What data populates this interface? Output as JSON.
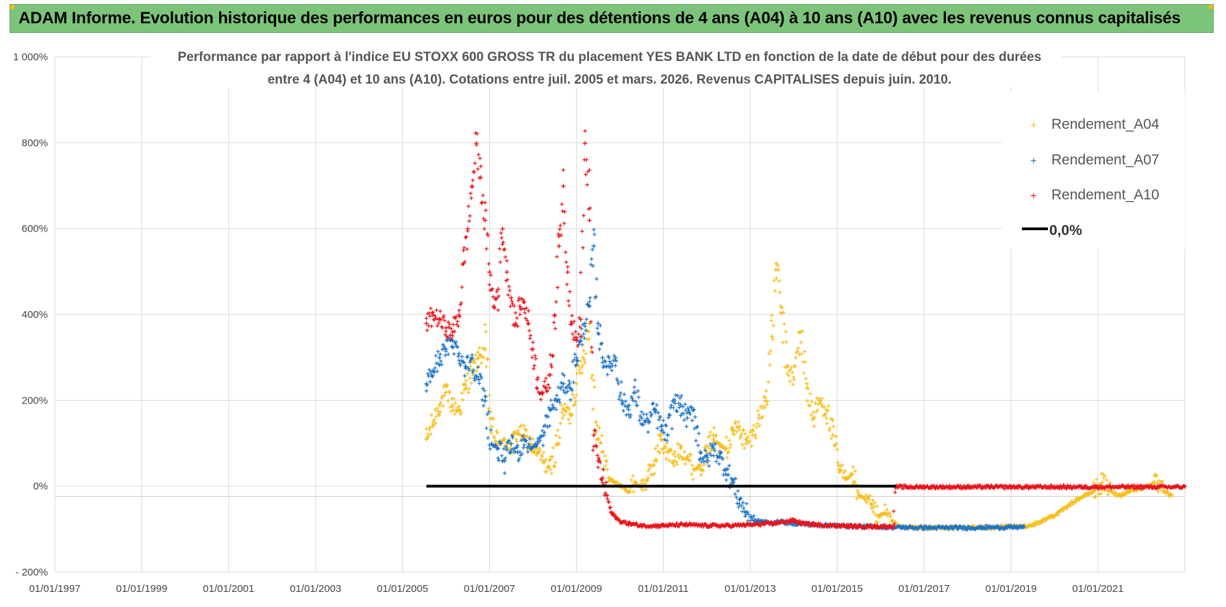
{
  "banner": {
    "title": "ADAM Informe. Evolution historique des performances en euros pour des détentions de 4 ans (A04) à 10 ans (A10) avec les revenus connus capitalisés"
  },
  "colors": {
    "A04": "#f5bf1e",
    "A07": "#1f74c4",
    "A10": "#e8141b",
    "zero": "#000000",
    "banner_bg": "#7dc47b",
    "grid": "#d9d9d9"
  },
  "chart_data": {
    "type": "scatter",
    "title_line1": "Performance par rapport à l'indice EU STOXX 600 GROSS TR  du placement YES BANK LTD en fonction de la date de début pour des durées",
    "title_line2": "entre 4 (A04) et 10 ans (A10).  Cotations entre juil. 2005 et mars. 2026. Revenus CAPITALISES depuis juin. 2010.",
    "xlabel": "",
    "ylabel": "",
    "x_range": [
      1997.0,
      2023.0
    ],
    "ylim": [
      -200,
      1000
    ],
    "y_ticks": [
      -200,
      0,
      200,
      400,
      600,
      800,
      1000
    ],
    "y_tick_labels": [
      "- 200%",
      "0%",
      "200%",
      "400%",
      "600%",
      "800%",
      "1 000%"
    ],
    "x_ticks": [
      1997,
      1999,
      2001,
      2003,
      2005,
      2007,
      2009,
      2011,
      2013,
      2015,
      2017,
      2019,
      2021
    ],
    "x_tick_labels": [
      "01/01/1997",
      "01/01/1999",
      "01/01/2001",
      "01/01/2003",
      "01/01/2005",
      "01/01/2007",
      "01/01/2009",
      "01/01/2011",
      "01/01/2013",
      "01/01/2015",
      "01/01/2017",
      "01/01/2019",
      "01/01/2021"
    ],
    "grid": true,
    "legend_position": "top-right",
    "series": [
      {
        "name": "Rendement_A04",
        "key": "A04",
        "marker": "+",
        "x": [
          2005.55,
          2005.7,
          2005.85,
          2006.0,
          2006.15,
          2006.3,
          2006.45,
          2006.6,
          2006.75,
          2006.9,
          2007.05,
          2007.2,
          2007.35,
          2007.5,
          2007.65,
          2007.8,
          2007.95,
          2008.1,
          2008.25,
          2008.4,
          2008.55,
          2008.7,
          2008.85,
          2009.0,
          2009.15,
          2009.3,
          2009.45,
          2009.6,
          2009.75,
          2009.9,
          2010.05,
          2010.2,
          2010.35,
          2010.5,
          2010.65,
          2010.8,
          2010.95,
          2011.1,
          2011.25,
          2011.4,
          2011.55,
          2011.7,
          2011.85,
          2012.0,
          2012.15,
          2012.3,
          2012.45,
          2012.6,
          2012.75,
          2012.9,
          2013.05,
          2013.2,
          2013.35,
          2013.5,
          2013.6,
          2013.7,
          2013.85,
          2014.0,
          2014.15,
          2014.3,
          2014.45,
          2014.6,
          2014.75,
          2014.9,
          2015.05,
          2015.2,
          2015.35,
          2015.5,
          2015.65,
          2015.8,
          2015.95,
          2016.1,
          2016.25,
          2016.4,
          2016.55,
          2016.7,
          2016.85,
          2017.0,
          2017.5,
          2018.0,
          2018.5,
          2019.0,
          2019.3,
          2019.5,
          2019.7,
          2019.9,
          2020.1,
          2020.3,
          2020.5,
          2020.7,
          2020.9,
          2021.1,
          2021.3,
          2021.5,
          2021.7,
          2021.9,
          2022.1,
          2022.3,
          2022.5,
          2022.7
        ],
        "values": [
          110,
          150,
          190,
          220,
          190,
          180,
          230,
          270,
          300,
          320,
          140,
          100,
          110,
          90,
          130,
          120,
          100,
          80,
          60,
          40,
          100,
          180,
          170,
          240,
          300,
          380,
          150,
          80,
          20,
          10,
          0,
          -10,
          10,
          0,
          20,
          60,
          110,
          80,
          60,
          90,
          70,
          40,
          50,
          80,
          120,
          100,
          90,
          130,
          140,
          100,
          120,
          160,
          200,
          350,
          520,
          420,
          280,
          250,
          360,
          240,
          160,
          200,
          180,
          120,
          40,
          20,
          30,
          -20,
          -30,
          -50,
          -70,
          -60,
          -80,
          -90,
          -95,
          -93,
          -95,
          -94,
          -95,
          -94,
          -94,
          -93,
          -92,
          -88,
          -80,
          -70,
          -60,
          -45,
          -30,
          -20,
          -10,
          10,
          -10,
          -20,
          -10,
          -5,
          0,
          10,
          -10,
          -20
        ]
      },
      {
        "name": "Rendement_A07",
        "key": "A07",
        "marker": "+",
        "x": [
          2005.55,
          2005.7,
          2005.85,
          2006.0,
          2006.15,
          2006.3,
          2006.45,
          2006.6,
          2006.75,
          2006.9,
          2007.05,
          2007.2,
          2007.35,
          2007.5,
          2007.65,
          2007.8,
          2007.95,
          2008.1,
          2008.25,
          2008.4,
          2008.55,
          2008.7,
          2008.85,
          2009.0,
          2009.1,
          2009.2,
          2009.3,
          2009.4,
          2009.5,
          2009.6,
          2009.75,
          2009.9,
          2010.05,
          2010.2,
          2010.35,
          2010.5,
          2010.65,
          2010.8,
          2010.95,
          2011.1,
          2011.25,
          2011.4,
          2011.55,
          2011.7,
          2011.85,
          2012.0,
          2012.15,
          2012.3,
          2012.45,
          2012.6,
          2012.75,
          2012.9,
          2013.1,
          2013.3,
          2013.5,
          2013.7,
          2013.9,
          2014.1,
          2014.5,
          2015.0,
          2015.5,
          2016.0,
          2016.5,
          2017.0,
          2017.5,
          2018.0,
          2018.5,
          2019.0,
          2019.3
        ],
        "values": [
          240,
          270,
          300,
          320,
          340,
          310,
          280,
          300,
          250,
          200,
          100,
          90,
          60,
          100,
          80,
          110,
          90,
          100,
          120,
          180,
          200,
          240,
          230,
          300,
          340,
          380,
          420,
          560,
          380,
          300,
          280,
          300,
          200,
          180,
          220,
          160,
          150,
          180,
          140,
          120,
          200,
          190,
          160,
          180,
          80,
          60,
          90,
          70,
          40,
          10,
          -30,
          -60,
          -80,
          -80,
          -85,
          -80,
          -85,
          -85,
          -88,
          -90,
          -92,
          -93,
          -94,
          -95,
          -95,
          -95,
          -94,
          -94,
          -93
        ]
      },
      {
        "name": "Rendement_A10",
        "key": "A10",
        "marker": "+",
        "x": [
          2005.55,
          2005.7,
          2005.85,
          2006.0,
          2006.15,
          2006.3,
          2006.4,
          2006.5,
          2006.6,
          2006.7,
          2006.8,
          2006.9,
          2007.0,
          2007.1,
          2007.2,
          2007.3,
          2007.4,
          2007.5,
          2007.6,
          2007.7,
          2007.8,
          2007.9,
          2008.0,
          2008.1,
          2008.2,
          2008.3,
          2008.4,
          2008.5,
          2008.6,
          2008.7,
          2008.8,
          2008.9,
          2009.0,
          2009.1,
          2009.2,
          2009.3,
          2009.4,
          2009.5,
          2009.6,
          2009.7,
          2009.8,
          2009.9,
          2010.0,
          2010.2,
          2010.5,
          2011.0,
          2011.5,
          2012.0,
          2012.5,
          2013.0,
          2013.5,
          2014.0,
          2014.2,
          2014.5,
          2015.0,
          2015.5,
          2016.0,
          2016.3,
          2016.35,
          2017.0,
          2018.0,
          2019.0,
          2020.0,
          2021.0,
          2022.0,
          2023.0
        ],
        "values": [
          380,
          400,
          390,
          370,
          360,
          400,
          520,
          600,
          700,
          800,
          720,
          620,
          500,
          420,
          460,
          600,
          500,
          440,
          380,
          420,
          430,
          380,
          320,
          250,
          220,
          230,
          260,
          400,
          560,
          700,
          500,
          380,
          340,
          390,
          800,
          620,
          120,
          60,
          20,
          -20,
          -60,
          -70,
          -80,
          -85,
          -90,
          -90,
          -88,
          -90,
          -90,
          -88,
          -85,
          -78,
          -85,
          -88,
          -90,
          -92,
          -92,
          -92,
          0,
          0,
          0,
          0,
          0,
          0,
          0,
          0
        ]
      },
      {
        "name": "0,0%",
        "key": "zero",
        "marker": "line",
        "x": [
          2005.55,
          2016.35
        ],
        "values": [
          0,
          0
        ]
      }
    ],
    "legend": [
      {
        "label": "Rendement_A04",
        "key": "A04"
      },
      {
        "label": "Rendement_A07",
        "key": "A07"
      },
      {
        "label": "Rendement_A10",
        "key": "A10"
      },
      {
        "label": "0,0%",
        "key": "zero"
      }
    ]
  }
}
